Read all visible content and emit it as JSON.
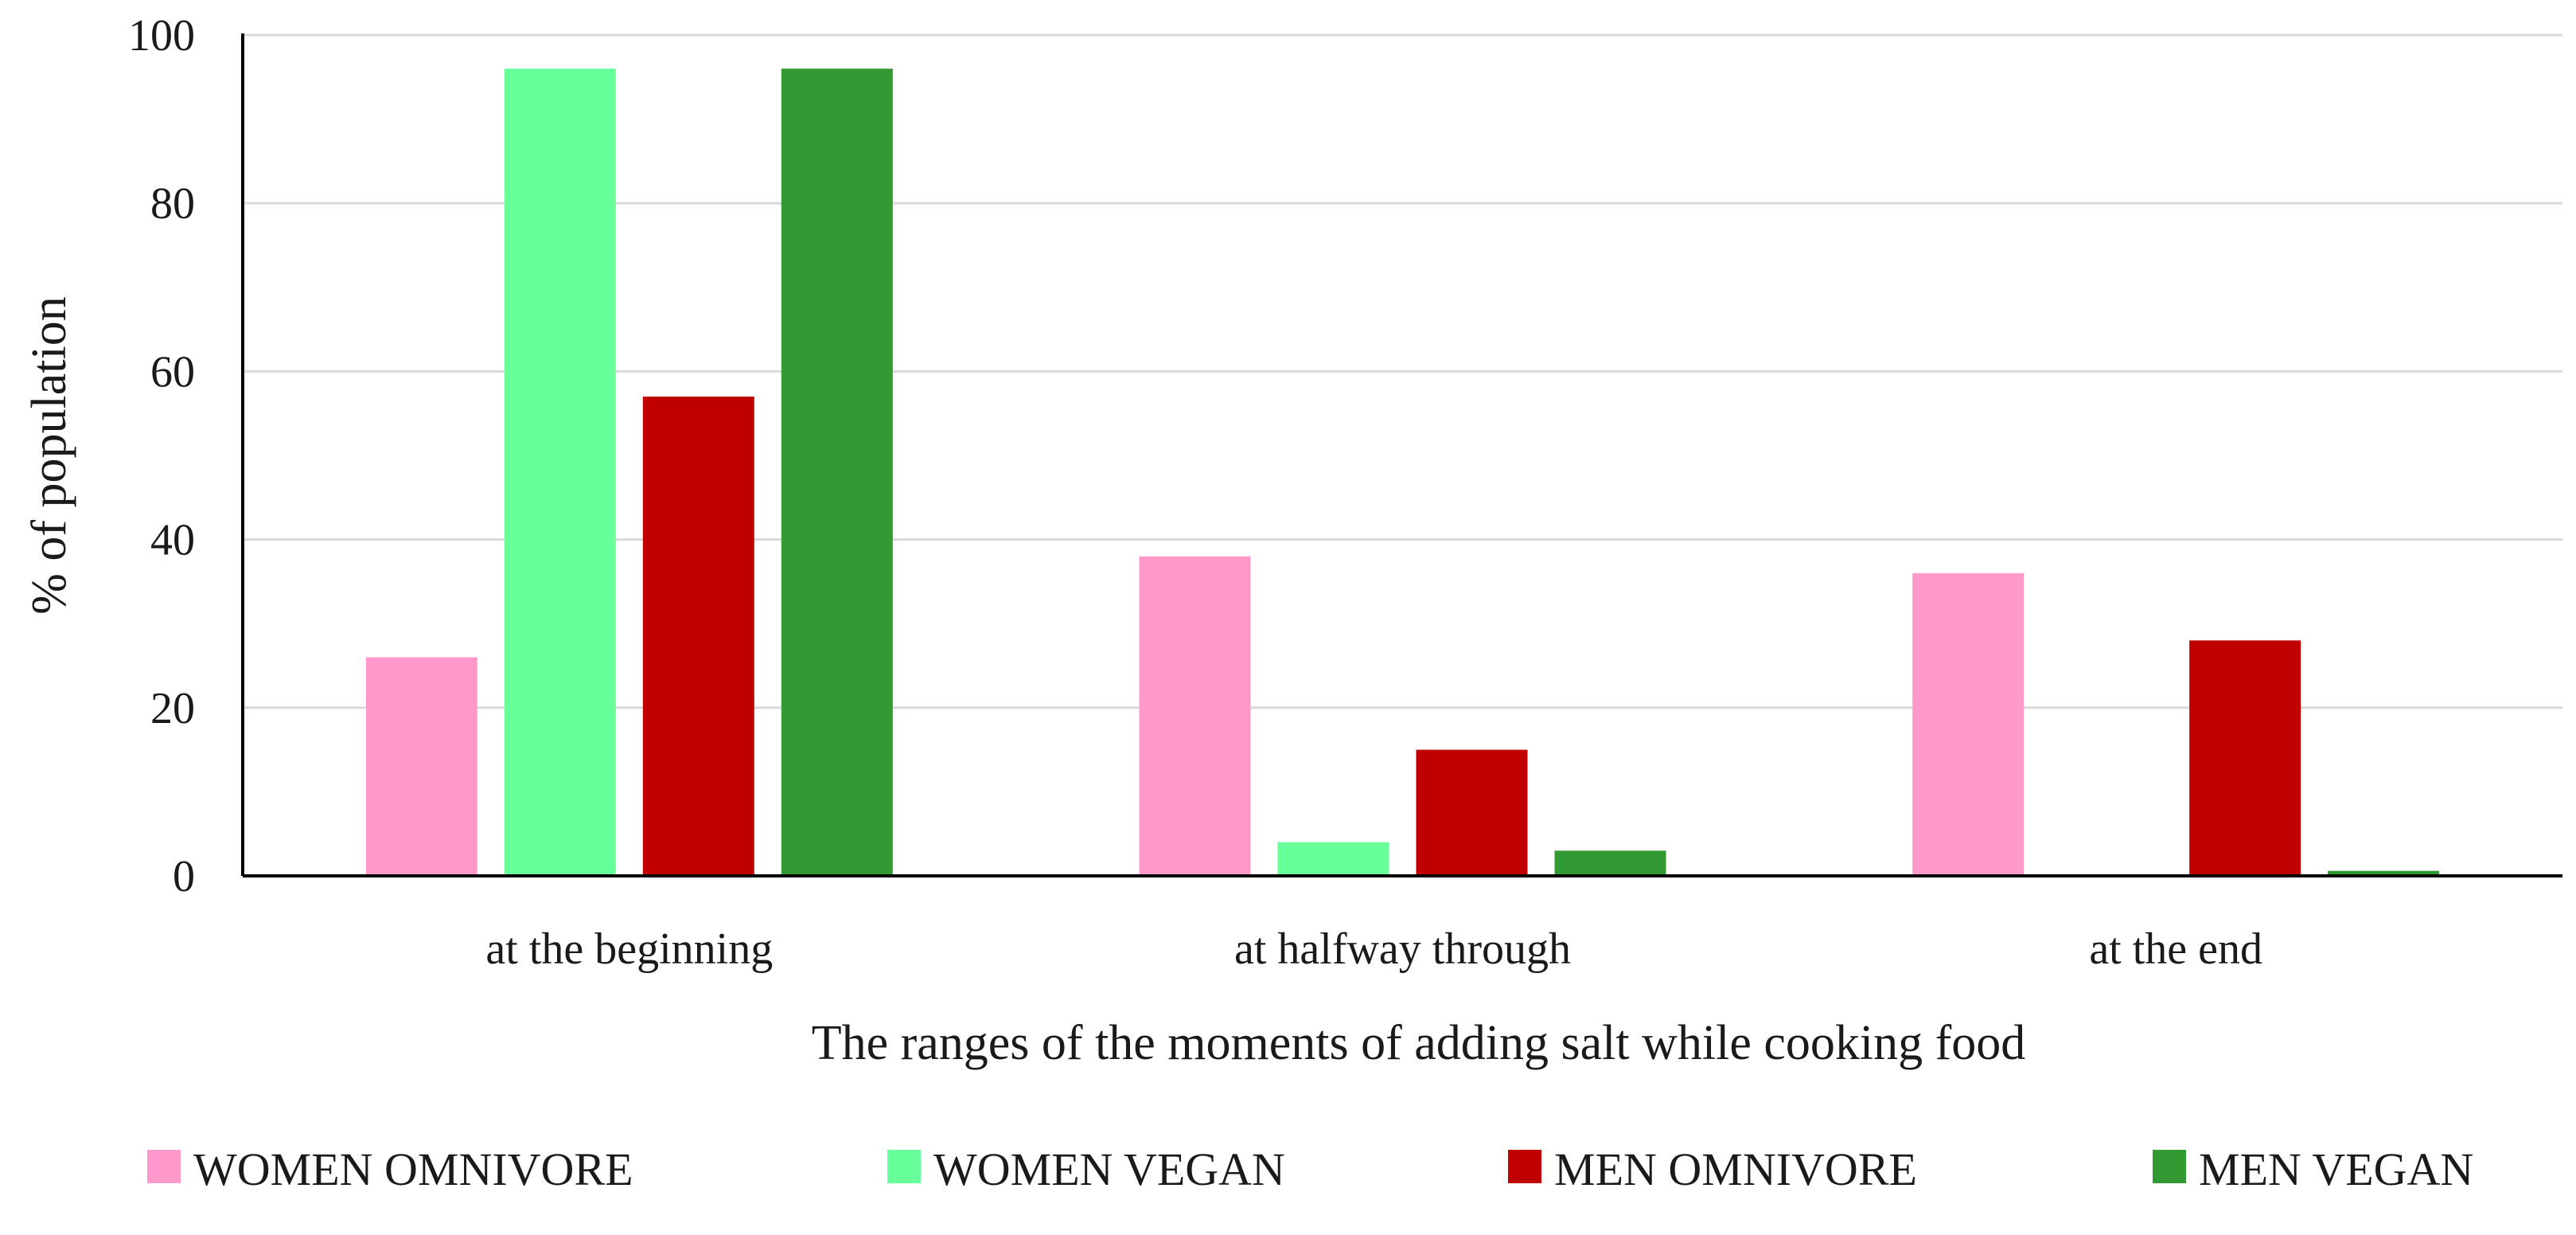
{
  "chart_data": {
    "type": "bar",
    "title": "",
    "xlabel": "The ranges of the moments of adding salt while cooking food",
    "ylabel": "% of population",
    "categories": [
      "at the beginning",
      "at halfway through",
      "at the end"
    ],
    "series": [
      {
        "name": "WOMEN OMNIVORE",
        "color": "#ff99cc",
        "values": [
          26,
          38,
          36
        ]
      },
      {
        "name": "WOMEN VEGAN",
        "color": "#66ff99",
        "values": [
          96,
          4,
          0
        ]
      },
      {
        "name": "MEN OMNIVORE",
        "color": "#c00000",
        "values": [
          57,
          15,
          28
        ]
      },
      {
        "name": "MEN VEGAN",
        "color": "#339933",
        "values": [
          96,
          3,
          0.6
        ]
      }
    ],
    "ylim": [
      0,
      100
    ],
    "yticks": [
      0,
      20,
      40,
      60,
      80,
      100
    ],
    "grid": true,
    "legend_position": "bottom"
  }
}
